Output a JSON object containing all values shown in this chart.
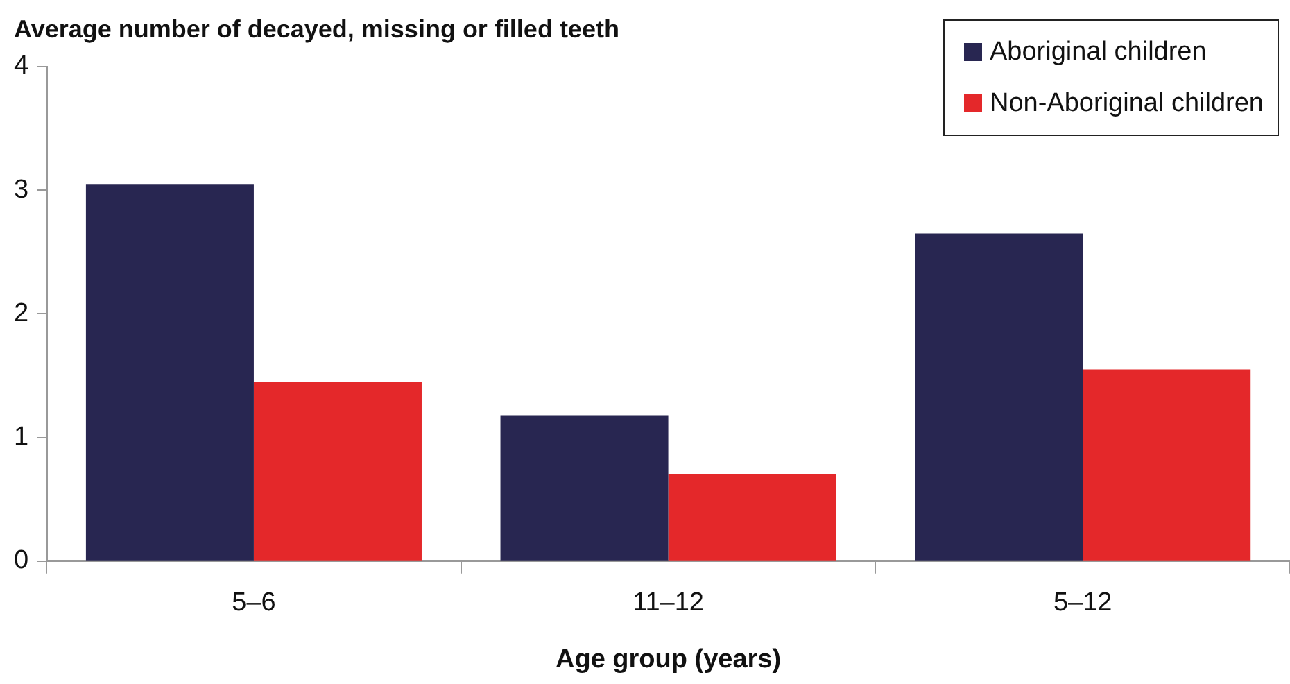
{
  "chart_data": {
    "type": "bar",
    "ylabel": "Average number of decayed, missing or filled teeth",
    "xlabel": "Age group (years)",
    "categories": [
      "5–6",
      "11–12",
      "5–12"
    ],
    "series": [
      {
        "name": "Aboriginal children",
        "color": "#282651",
        "values": [
          3.05,
          1.18,
          2.65
        ]
      },
      {
        "name": "Non-Aboriginal children",
        "color": "#e4282a",
        "values": [
          1.45,
          0.7,
          1.55
        ]
      }
    ],
    "ylim": [
      0,
      4
    ],
    "yticks": [
      0,
      1,
      2,
      3,
      4
    ],
    "grid": false,
    "legend": "top right"
  }
}
